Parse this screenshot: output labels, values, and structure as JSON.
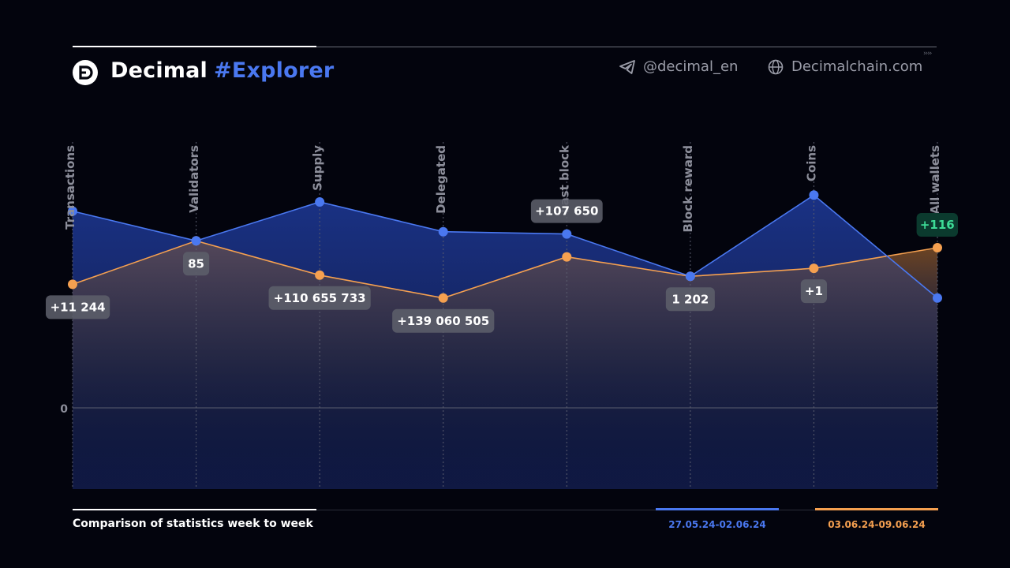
{
  "brand": {
    "name": "Decimal",
    "tag": "#Explorer"
  },
  "social": {
    "telegram": "@decimal_en",
    "website": "Decimalchain.com"
  },
  "footer": {
    "caption": "Comparison of statistics week to week"
  },
  "colors": {
    "blue": "#4a78f0",
    "orange": "#f5a050",
    "badge_green": "#3ddc97",
    "background": "#03040d"
  },
  "chart_data": {
    "type": "line",
    "categories": [
      "Transactions",
      "Validators",
      "Supply",
      "Delegated",
      "Last block",
      "Block reward",
      "Coins",
      "All wallets"
    ],
    "ylim": [
      -1,
      2
    ],
    "y_tick_labels": [
      "0"
    ],
    "series": [
      {
        "name": "27.05.24-02.06.24",
        "color": "#4a78f0",
        "relative_levels": [
          1.72,
          1.46,
          1.8,
          1.54,
          1.52,
          1.15,
          1.86,
          0.96
        ]
      },
      {
        "name": "03.06.24-09.06.24",
        "color": "#f5a050",
        "relative_levels": [
          1.08,
          1.46,
          1.16,
          0.96,
          1.32,
          1.15,
          1.22,
          1.4
        ]
      }
    ],
    "data_labels": [
      "+11 244",
      "85",
      "+110 655 733",
      "+139 060 505",
      "+107 650",
      "1 202",
      "+1",
      "+116"
    ],
    "label_highlight": [
      false,
      false,
      false,
      false,
      false,
      false,
      false,
      true
    ],
    "label_side": [
      "below",
      "below",
      "below",
      "below",
      "above",
      "below",
      "below",
      "above"
    ]
  }
}
